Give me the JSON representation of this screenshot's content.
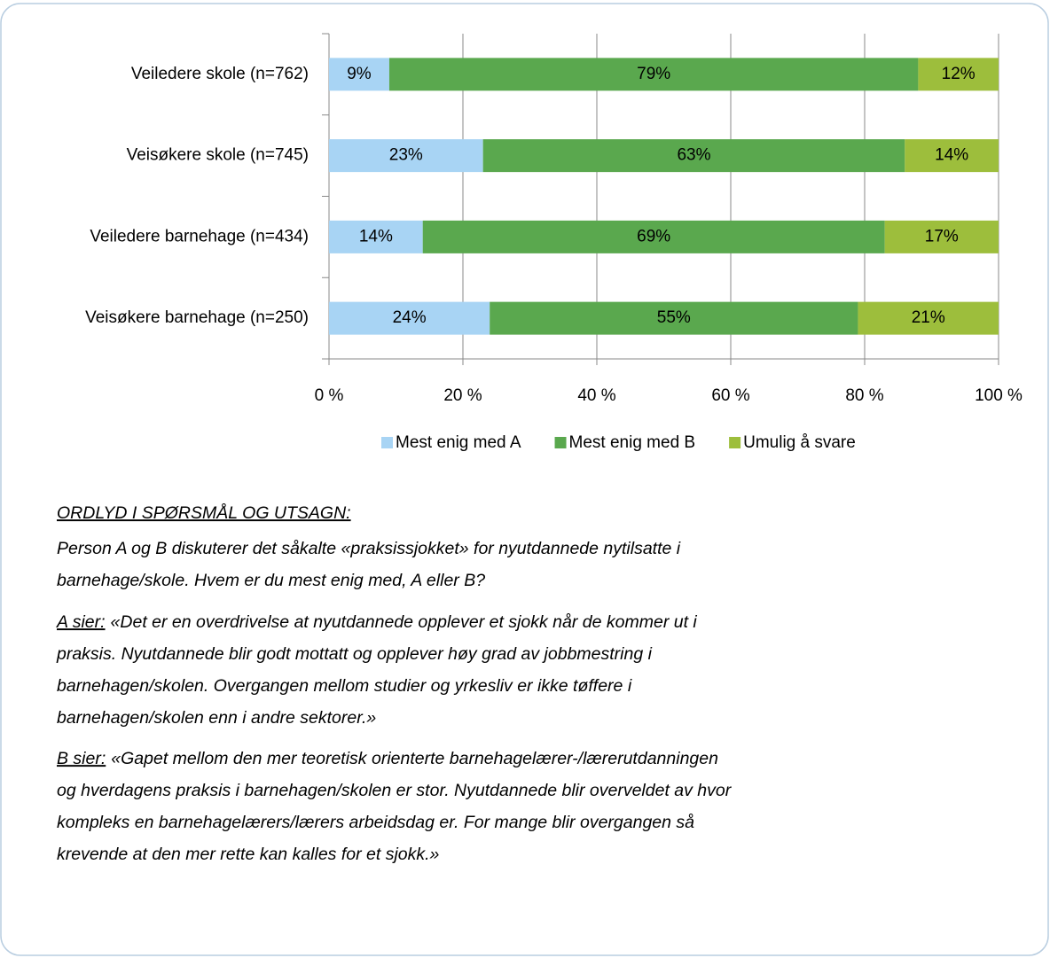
{
  "chart_data": {
    "type": "stacked-barh",
    "categories": [
      "Veiledere skole (n=762)",
      "Veisøkere skole (n=745)",
      "Veiledere barnehage (n=434)",
      "Veisøkere barnehage (n=250)"
    ],
    "series": [
      {
        "name": "Mest enig med A",
        "color": "#a8d4f4",
        "values": [
          9,
          23,
          14,
          24
        ],
        "value_labels": [
          "9%",
          "23%",
          "14%",
          "24%"
        ]
      },
      {
        "name": "Mest enig med B",
        "color": "#5aa84e",
        "values": [
          79,
          63,
          69,
          55
        ],
        "value_labels": [
          "79%",
          "63%",
          "69%",
          "55%"
        ]
      },
      {
        "name": "Umulig å svare",
        "color": "#9dbe3c",
        "values": [
          12,
          14,
          17,
          21
        ],
        "value_labels": [
          "12%",
          "14%",
          "17%",
          "21%"
        ]
      }
    ],
    "xlim": [
      0,
      100
    ],
    "xticks": [
      {
        "value": 0,
        "label": "0 %"
      },
      {
        "value": 20,
        "label": "20 %"
      },
      {
        "value": 40,
        "label": "40 %"
      },
      {
        "value": 60,
        "label": "60 %"
      },
      {
        "value": 80,
        "label": "80 %"
      },
      {
        "value": 100,
        "label": "100 %"
      }
    ],
    "grid": true,
    "legend": "bottom"
  },
  "statement": {
    "heading": "ORDLYD I SPØRSMÅL OG UTSAGN:",
    "question": [
      "Person A og B diskuterer det såkalte «praksissjokket» for nyutdannede nytilsatte i",
      "barnehage/skole. Hvem er du mest enig med, A eller B?"
    ],
    "a": {
      "label": "A sier:",
      "lines": [
        "«Det er en overdrivelse at nyutdannede opplever et sjokk når de kommer ut i",
        "praksis. Nyutdannede blir godt mottatt og opplever høy grad av jobbmestring i",
        "barnehagen/skolen. Overgangen mellom studier og yrkesliv er ikke tøffere i",
        "barnehagen/skolen enn i andre sektorer.»"
      ]
    },
    "b": {
      "label": "B sier:",
      "lines": [
        "«Gapet mellom den mer teoretisk orienterte barnehagelærer-/lærerutdanningen",
        "og hverdagens praksis i barnehagen/skolen er stor. Nyutdannede blir overveldet av hvor",
        "kompleks en barnehagelærers/lærers arbeidsdag er. For mange blir overgangen så",
        "krevende at den mer rette kan kalles for et sjokk.»"
      ]
    }
  }
}
